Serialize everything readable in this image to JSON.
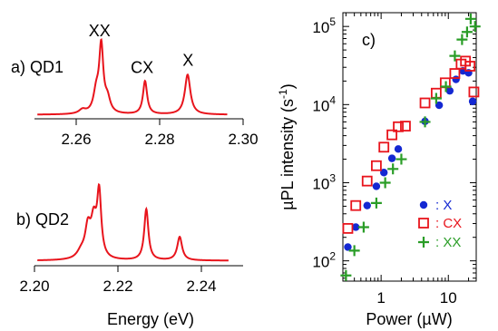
{
  "chart_data": [
    {
      "id": "qd1",
      "type": "line",
      "panel_label": "a) QD1",
      "xlabel": "",
      "xlim": [
        2.25,
        2.3
      ],
      "xticks": [
        2.26,
        2.28,
        2.3
      ],
      "xtick_labels": [
        "2.26",
        "2.28",
        "2.30"
      ],
      "ylim": [
        0,
        1.05
      ],
      "color": "#e8141c",
      "peaks": [
        {
          "label": "XX",
          "center": 2.266,
          "height": 0.99,
          "width": 0.0006
        },
        {
          "label": "",
          "center": 2.2648,
          "height": 0.3,
          "width": 0.0008
        },
        {
          "label": "",
          "center": 2.2675,
          "height": 0.2,
          "width": 0.0008
        },
        {
          "label": "",
          "center": 2.2615,
          "height": 0.06,
          "width": 0.001
        },
        {
          "label": "CX",
          "center": 2.2765,
          "height": 0.5,
          "width": 0.0006
        },
        {
          "label": "X",
          "center": 2.2867,
          "height": 0.6,
          "width": 0.0008
        }
      ],
      "peak_labels": [
        {
          "text": "XX",
          "x": 2.2656,
          "y": 1.2
        },
        {
          "text": "CX",
          "x": 2.2758,
          "y": 0.65
        },
        {
          "text": "X",
          "x": 2.2868,
          "y": 0.76
        }
      ]
    },
    {
      "id": "qd2",
      "type": "line",
      "panel_label": "b) QD2",
      "xlabel": "Energy (eV)",
      "xlim": [
        2.2,
        2.25
      ],
      "xticks": [
        2.2,
        2.22,
        2.24
      ],
      "xtick_labels": [
        "2.20",
        "2.22",
        "2.24"
      ],
      "ylim": [
        0,
        1.05
      ],
      "color": "#e8141c",
      "peaks": [
        {
          "center": 2.2155,
          "height": 0.92,
          "width": 0.0006
        },
        {
          "center": 2.2128,
          "height": 0.42,
          "width": 0.0008
        },
        {
          "center": 2.2142,
          "height": 0.5,
          "width": 0.0008
        },
        {
          "center": 2.2112,
          "height": 0.1,
          "width": 0.0012
        },
        {
          "center": 2.2268,
          "height": 0.74,
          "width": 0.0006
        },
        {
          "center": 2.2348,
          "height": 0.34,
          "width": 0.0007
        }
      ]
    },
    {
      "id": "power",
      "type": "scatter",
      "panel_label": "c)",
      "xlabel": "Power (µW)",
      "ylabel": "µPL intensity (s",
      "ylabel_sup": "-1",
      "ylabel_close": ")",
      "xscale": "log",
      "yscale": "log",
      "xlim": [
        0.27,
        26
      ],
      "ylim": [
        55,
        150000
      ],
      "xticks": [
        1,
        10
      ],
      "xtick_labels": [
        "1",
        "10"
      ],
      "yticks": [
        100,
        1000,
        10000,
        100000
      ],
      "ytick_labels": [
        [
          "10",
          "2"
        ],
        [
          "10",
          "3"
        ],
        [
          "10",
          "4"
        ],
        [
          "10",
          "5"
        ]
      ],
      "legend_position": "bottom-right",
      "series": [
        {
          "name": ": X",
          "marker": "filled-circle",
          "color": "#1428d2",
          "x": [
            0.32,
            0.42,
            0.62,
            0.85,
            1.1,
            1.45,
            1.8,
            4.5,
            7.3,
            10.5,
            13,
            16.5,
            20,
            23
          ],
          "y": [
            150,
            270,
            510,
            900,
            1350,
            2050,
            2700,
            6100,
            9800,
            15000,
            21000,
            27000,
            25500,
            11000
          ]
        },
        {
          "name": ": CX",
          "marker": "open-square",
          "color": "#e8141c",
          "x": [
            0.32,
            0.42,
            0.62,
            0.85,
            1.1,
            1.45,
            1.8,
            2.3,
            4.5,
            6.6,
            9,
            12.5,
            15.5,
            18,
            21,
            24
          ],
          "y": [
            260,
            510,
            1050,
            1650,
            2850,
            4100,
            5200,
            5300,
            10500,
            14000,
            19000,
            25000,
            33000,
            36000,
            31000,
            14500
          ]
        },
        {
          "name": ": XX",
          "marker": "plus",
          "color": "#2a9d27",
          "x": [
            0.3,
            0.4,
            0.55,
            0.85,
            1.15,
            1.5,
            2.0,
            4.5,
            6.6,
            9.2,
            12.5,
            16,
            19,
            21.5,
            25
          ],
          "y": [
            65,
            135,
            270,
            550,
            1000,
            1500,
            2000,
            6000,
            12000,
            17000,
            42000,
            68000,
            85000,
            125000,
            100000
          ]
        }
      ]
    }
  ]
}
